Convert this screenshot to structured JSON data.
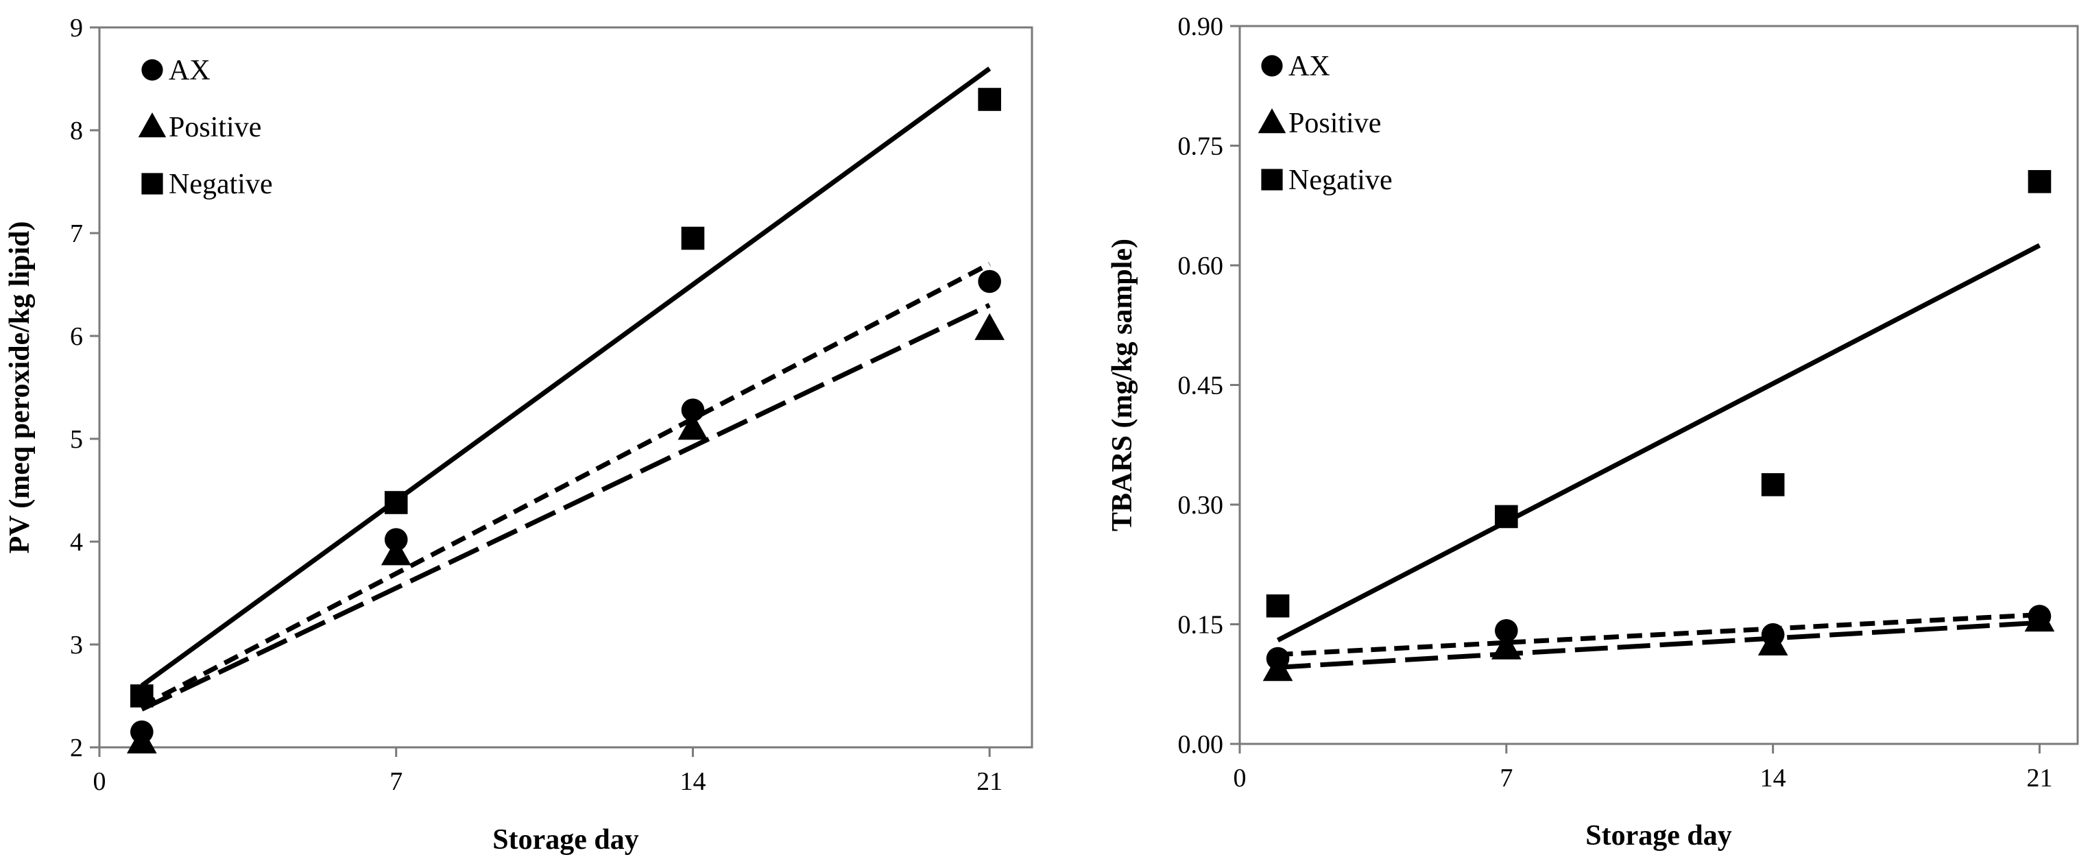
{
  "chart_data": [
    {
      "type": "scatter",
      "title": "",
      "xlabel": "Storage day",
      "ylabel": "PV (meq peroxide/kg lipid)",
      "xlim": [
        0,
        22
      ],
      "ylim": [
        2,
        9
      ],
      "xticks": [
        0,
        7,
        14,
        21
      ],
      "yticks": [
        2,
        3,
        4,
        5,
        6,
        7,
        8,
        9
      ],
      "xtick_labels": [
        "0",
        "7",
        "14",
        "21"
      ],
      "ytick_labels": [
        "2",
        "3",
        "4",
        "5",
        "6",
        "7",
        "8",
        "9"
      ],
      "grid": false,
      "legend": "top-left",
      "series": [
        {
          "name": "AX",
          "marker": "circle",
          "x": [
            1,
            7,
            14,
            21
          ],
          "y": [
            2.15,
            4.02,
            5.28,
            6.53
          ],
          "trendline": {
            "style": "short-dash",
            "x": [
              1,
              21
            ],
            "y": [
              2.4,
              6.7
            ]
          }
        },
        {
          "name": "Positive",
          "marker": "triangle",
          "x": [
            1,
            7,
            14,
            21
          ],
          "y": [
            2.05,
            3.88,
            5.1,
            6.07
          ],
          "trendline": {
            "style": "long-dash",
            "x": [
              1,
              21
            ],
            "y": [
              2.37,
              6.3
            ]
          }
        },
        {
          "name": "Negative",
          "marker": "square",
          "x": [
            1,
            7,
            14,
            21
          ],
          "y": [
            2.5,
            4.38,
            6.95,
            8.3
          ],
          "trendline": {
            "style": "solid",
            "x": [
              1,
              21
            ],
            "y": [
              2.6,
              8.6
            ]
          }
        }
      ]
    },
    {
      "type": "scatter",
      "title": "",
      "xlabel": "Storage day",
      "ylabel": "TBARS (mg/kg sample)",
      "xlim": [
        0,
        22
      ],
      "ylim": [
        0,
        0.9
      ],
      "xticks": [
        0,
        7,
        14,
        21
      ],
      "yticks": [
        0,
        0.15,
        0.3,
        0.45,
        0.6,
        0.75,
        0.9
      ],
      "xtick_labels": [
        "0",
        "7",
        "14",
        "21"
      ],
      "ytick_labels": [
        "0.00",
        "0.15",
        "0.30",
        "0.45",
        "0.60",
        "0.75",
        "0.90"
      ],
      "grid": false,
      "legend": "top-left",
      "series": [
        {
          "name": "AX",
          "marker": "circle",
          "x": [
            1,
            7,
            14,
            21
          ],
          "y": [
            0.107,
            0.142,
            0.137,
            0.16
          ],
          "trendline": {
            "style": "short-dash",
            "x": [
              1,
              21
            ],
            "y": [
              0.112,
              0.162
            ]
          }
        },
        {
          "name": "Positive",
          "marker": "triangle",
          "x": [
            1,
            7,
            14,
            21
          ],
          "y": [
            0.093,
            0.12,
            0.125,
            0.155
          ],
          "trendline": {
            "style": "long-dash",
            "x": [
              1,
              21
            ],
            "y": [
              0.096,
              0.152
            ]
          }
        },
        {
          "name": "Negative",
          "marker": "square",
          "x": [
            1,
            7,
            14,
            21
          ],
          "y": [
            0.173,
            0.285,
            0.325,
            0.705
          ],
          "trendline": {
            "style": "solid",
            "x": [
              1,
              21
            ],
            "y": [
              0.13,
              0.625
            ]
          }
        }
      ]
    }
  ]
}
